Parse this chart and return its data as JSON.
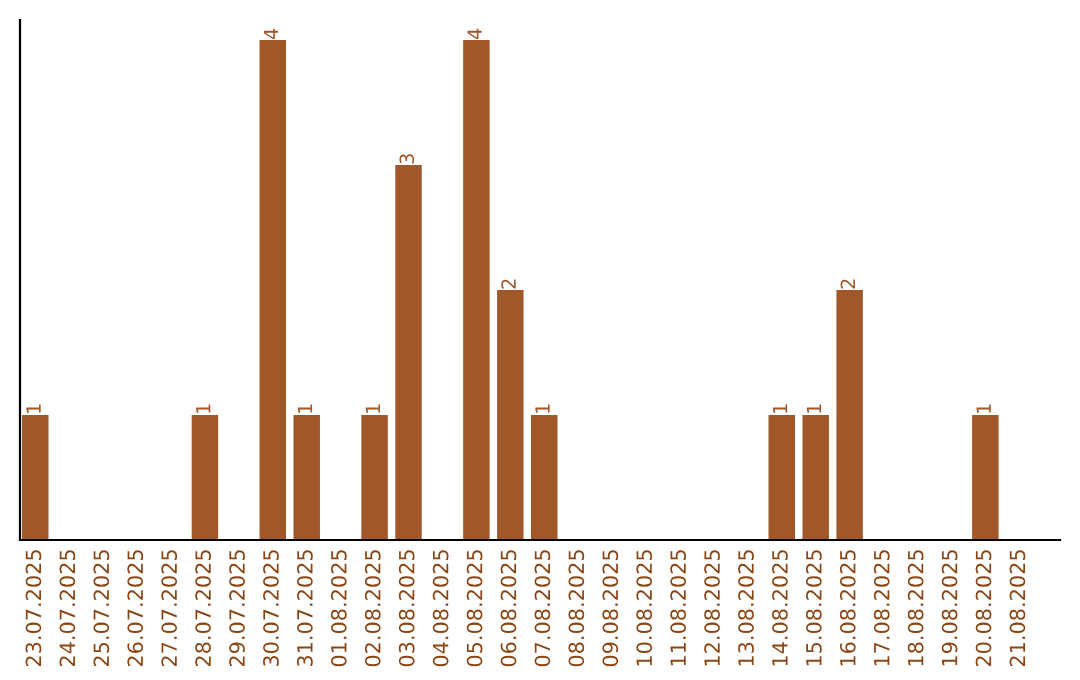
{
  "chart_data": {
    "type": "bar",
    "categories": [
      "23.07.2025",
      "24.07.2025",
      "25.07.2025",
      "26.07.2025",
      "27.07.2025",
      "28.07.2025",
      "29.07.2025",
      "30.07.2025",
      "31.07.2025",
      "01.08.2025",
      "02.08.2025",
      "03.08.2025",
      "04.08.2025",
      "05.08.2025",
      "06.08.2025",
      "07.08.2025",
      "08.08.2025",
      "09.08.2025",
      "10.08.2025",
      "11.08.2025",
      "12.08.2025",
      "13.08.2025",
      "14.08.2025",
      "15.08.2025",
      "16.08.2025",
      "17.08.2025",
      "18.08.2025",
      "19.08.2025",
      "20.08.2025",
      "21.08.2025"
    ],
    "values": [
      1,
      0,
      0,
      0,
      0,
      1,
      0,
      4,
      1,
      0,
      1,
      3,
      0,
      4,
      2,
      1,
      0,
      0,
      0,
      0,
      0,
      0,
      1,
      1,
      2,
      0,
      0,
      0,
      1,
      0
    ],
    "value_labels": [
      "1",
      null,
      null,
      null,
      null,
      "1",
      null,
      "4",
      "1",
      null,
      "1",
      "3",
      null,
      "4",
      "2",
      "1",
      null,
      null,
      null,
      null,
      null,
      null,
      "1",
      "1",
      "2",
      null,
      null,
      null,
      "1",
      null
    ],
    "color": "#a0572a",
    "tick_labels": "x",
    "grid": false,
    "legend": false
  }
}
